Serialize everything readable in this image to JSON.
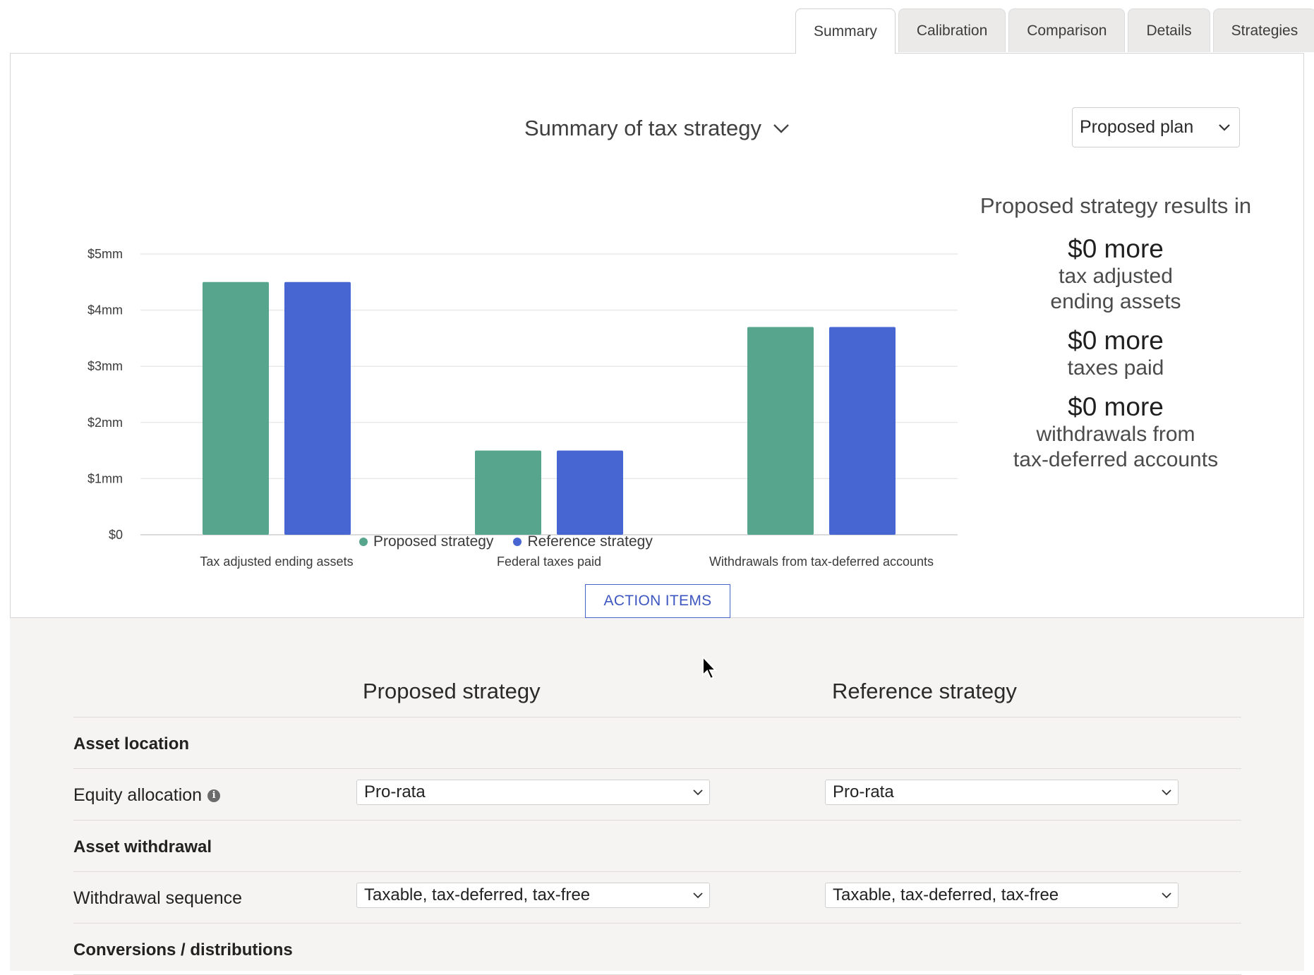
{
  "tabs": [
    {
      "label": "Summary",
      "active": true
    },
    {
      "label": "Calibration",
      "active": false
    },
    {
      "label": "Comparison",
      "active": false
    },
    {
      "label": "Details",
      "active": false
    },
    {
      "label": "Strategies",
      "active": false
    }
  ],
  "header": {
    "chart_title": "Summary of tax strategy",
    "plan_select_value": "Proposed plan"
  },
  "chart_data": {
    "type": "bar",
    "categories": [
      "Tax adjusted ending assets",
      "Federal taxes paid",
      "Withdrawals from tax-deferred accounts"
    ],
    "series": [
      {
        "name": "Proposed strategy",
        "color": "#57a58c",
        "values": [
          4.5,
          1.5,
          3.7
        ]
      },
      {
        "name": "Reference strategy",
        "color": "#4866d1",
        "values": [
          4.5,
          1.5,
          3.7
        ]
      }
    ],
    "y_ticks": [
      "$0",
      "$1mm",
      "$2mm",
      "$3mm",
      "$4mm",
      "$5mm"
    ],
    "ylim": [
      0,
      5
    ],
    "grid": true,
    "legend_position": "bottom"
  },
  "results": {
    "headline": "Proposed strategy results in",
    "items": [
      {
        "value": "$0 more",
        "label_lines": [
          "tax adjusted",
          "ending assets"
        ]
      },
      {
        "value": "$0 more",
        "label_lines": [
          "taxes paid"
        ]
      },
      {
        "value": "$0 more",
        "label_lines": [
          "withdrawals from",
          "tax-deferred accounts"
        ]
      }
    ]
  },
  "action_items_label": "ACTION ITEMS",
  "strategy_table": {
    "proposed_header": "Proposed strategy",
    "reference_header": "Reference strategy",
    "sections": {
      "asset_location": "Asset location",
      "asset_withdrawal": "Asset withdrawal",
      "conversions": "Conversions / distributions"
    },
    "equity_allocation": {
      "label": "Equity allocation",
      "proposed": "Pro-rata",
      "reference": "Pro-rata"
    },
    "withdrawal_sequence": {
      "label": "Withdrawal sequence",
      "proposed": "Taxable, tax-deferred, tax-free",
      "reference": "Taxable, tax-deferred, tax-free"
    }
  },
  "icons": {
    "title_chevron": "chevron-down-icon",
    "select_chevron": "chevron-down-icon",
    "info": "info-icon",
    "cursor": "mouse-pointer-icon"
  }
}
